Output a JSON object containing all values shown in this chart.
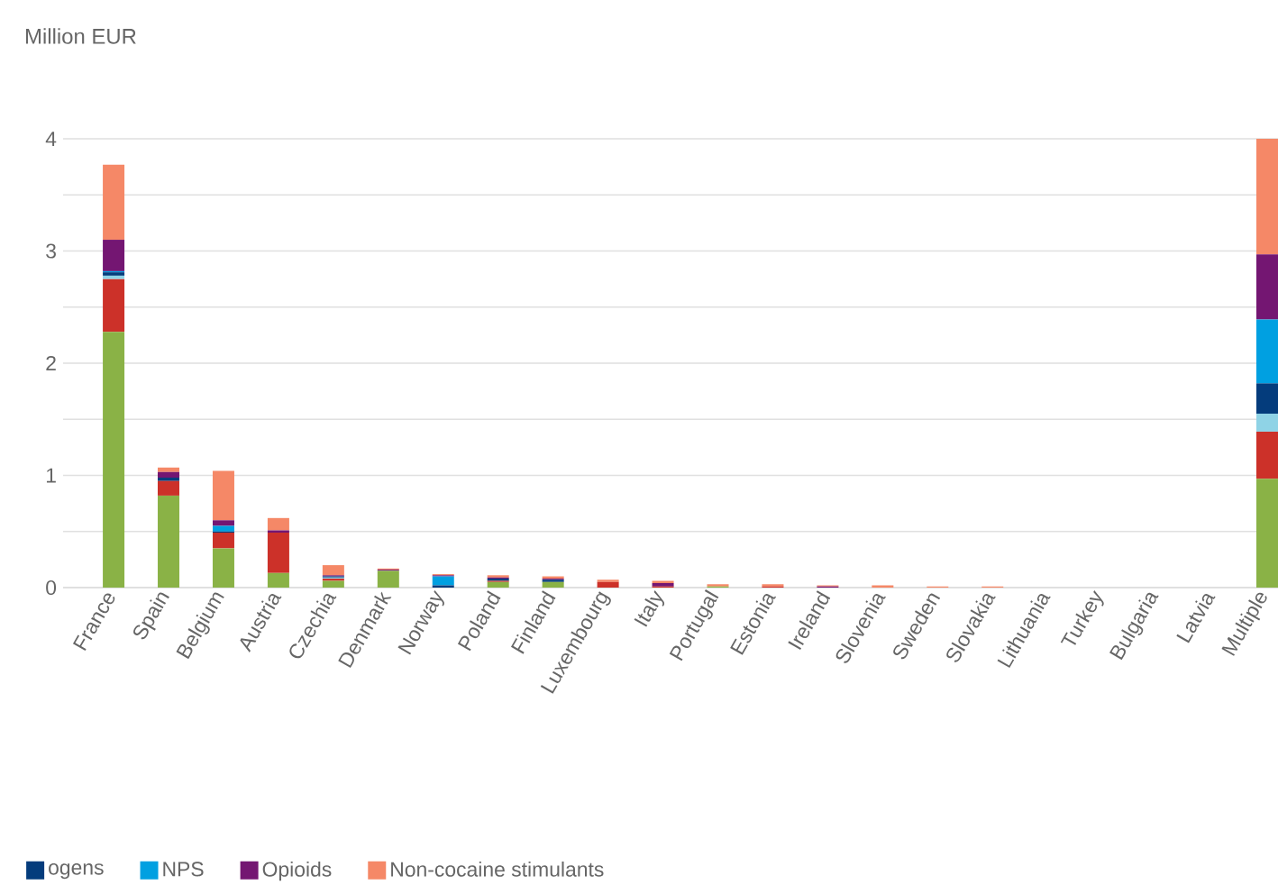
{
  "chart_data": {
    "type": "bar",
    "stacked": true,
    "ylabel": "Million EUR",
    "categories": [
      "France",
      "Spain",
      "Belgium",
      "Austria",
      "Czechia",
      "Denmark",
      "Norway",
      "Poland",
      "Finland",
      "Luxembourg",
      "Italy",
      "Portugal",
      "Estonia",
      "Ireland",
      "Slovenia",
      "Sweden",
      "Slovakia",
      "Lithuania",
      "Turkey",
      "Bulgaria",
      "Latvia",
      "Multiple"
    ],
    "series": [
      {
        "color": "#8ab246",
        "values": [
          2.28,
          0.82,
          0.35,
          0.13,
          0.06,
          0.15,
          0,
          0.05,
          0.05,
          0,
          0,
          0.01,
          0,
          0,
          0,
          0,
          0,
          0,
          0,
          0,
          0,
          0.97
        ]
      },
      {
        "color": "#cc3129",
        "values": [
          0.47,
          0.13,
          0.14,
          0.36,
          0.02,
          0,
          0,
          0.01,
          0,
          0.05,
          0.01,
          0,
          0.01,
          0,
          0,
          0,
          0,
          0,
          0,
          0,
          0,
          0.42
        ]
      },
      {
        "color": "#8fd3e6",
        "values": [
          0.03,
          0,
          0,
          0,
          0.01,
          0,
          0,
          0,
          0,
          0,
          0,
          0,
          0,
          0,
          0,
          0,
          0,
          0,
          0,
          0,
          0,
          0.16
        ]
      },
      {
        "name": "ogens",
        "color": "#043c7c",
        "values": [
          0.03,
          0.03,
          0.01,
          0,
          0.01,
          0,
          0.02,
          0.02,
          0.02,
          0,
          0,
          0,
          0,
          0,
          0,
          0,
          0,
          0,
          0,
          0,
          0,
          0.27
        ]
      },
      {
        "name": "NPS",
        "color": "#00a0e1",
        "values": [
          0.01,
          0,
          0.05,
          0,
          0,
          0,
          0.08,
          0,
          0,
          0,
          0,
          0,
          0,
          0,
          0,
          0,
          0,
          0,
          0,
          0,
          0,
          0.57
        ]
      },
      {
        "name": "Opioids",
        "color": "#741672",
        "values": [
          0.28,
          0.05,
          0.05,
          0.02,
          0.01,
          0.01,
          0.01,
          0.01,
          0.01,
          0,
          0.03,
          0,
          0,
          0.01,
          0,
          0,
          0,
          0,
          0,
          0,
          0,
          0.58
        ]
      },
      {
        "name": "Non-cocaine stimulants",
        "color": "#f58867",
        "values": [
          0.67,
          0.04,
          0.44,
          0.11,
          0.09,
          0.01,
          0.01,
          0.02,
          0.02,
          0.02,
          0.02,
          0.02,
          0.02,
          0.01,
          0.02,
          0.01,
          0.01,
          0,
          0,
          0,
          0,
          1.03
        ]
      }
    ],
    "ylim": [
      0,
      4
    ],
    "yticks": [
      0,
      {
        "value": 0.5,
        "label": null
      },
      1,
      {
        "value": 1.5,
        "label": null
      },
      2,
      {
        "value": 2.5,
        "label": null
      },
      3,
      {
        "value": 3.5,
        "label": null
      },
      4
    ],
    "grid": "y",
    "legend": "bottom"
  }
}
